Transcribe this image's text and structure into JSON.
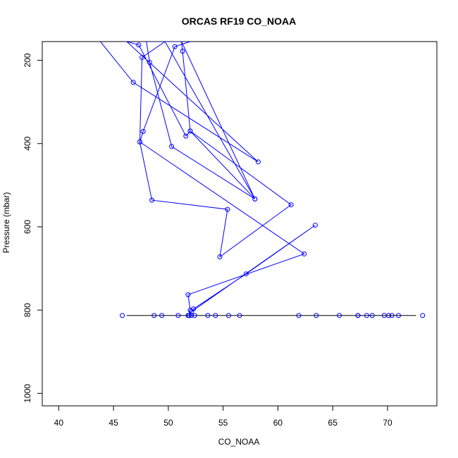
{
  "chart_data": {
    "type": "line",
    "title": "ORCAS RF19 CO_NOAA",
    "xlabel": "CO_NOAA",
    "ylabel": "Pressure (mbar)",
    "xlim": [
      38.5,
      74.5
    ],
    "ylim": [
      1030,
      155
    ],
    "y_reversed": true,
    "xticks": [
      40,
      45,
      50,
      55,
      60,
      65,
      70
    ],
    "yticks": [
      200,
      400,
      600,
      800,
      1000
    ],
    "line_color": "#0000ff",
    "reference_line_color": "#000000",
    "reference_line": {
      "y": 813,
      "x": [
        46.2,
        72.6
      ]
    },
    "series": [
      {
        "points": [
          [
            43.8,
            155
          ],
          [
            46.8,
            253
          ],
          [
            58.2,
            444
          ],
          [
            46.2,
            155
          ],
          [
            47.3,
            163
          ],
          [
            51.6,
            382
          ],
          [
            52.0,
            370
          ],
          [
            57.9,
            533
          ],
          [
            51.2,
            155
          ],
          [
            51.3,
            178
          ],
          [
            52.0,
            370
          ],
          [
            61.2,
            547
          ],
          [
            54.7,
            672
          ],
          [
            55.4,
            558
          ],
          [
            48.5,
            536
          ],
          [
            47.4,
            396
          ],
          [
            47.7,
            371
          ],
          [
            50.6,
            167
          ],
          [
            52.0,
            155
          ],
          [
            48.0,
            155
          ],
          [
            48.3,
            205
          ],
          [
            50.3,
            407
          ],
          [
            57.9,
            533
          ],
          [
            49.7,
            155
          ],
          [
            47.6,
            193
          ],
          [
            47.4,
            396
          ],
          [
            62.4,
            665
          ],
          [
            51.8,
            763
          ],
          [
            52.0,
            800
          ],
          [
            51.9,
            813
          ],
          [
            52.1,
            804
          ],
          [
            63.4,
            596
          ],
          [
            57.1,
            713
          ],
          [
            52.3,
            797
          ],
          [
            51.9,
            813
          ]
        ],
        "values": [
          [
            45.8,
            813
          ],
          [
            48.7,
            813
          ],
          [
            49.4,
            813
          ],
          [
            50.9,
            813
          ],
          [
            51.8,
            813
          ],
          [
            52.1,
            813
          ],
          [
            52.4,
            813
          ],
          [
            53.6,
            813
          ],
          [
            54.3,
            813
          ],
          [
            55.5,
            813
          ],
          [
            56.5,
            813
          ],
          [
            61.9,
            813
          ],
          [
            63.5,
            813
          ],
          [
            65.6,
            813
          ],
          [
            67.3,
            813
          ],
          [
            67.3,
            813
          ],
          [
            68.1,
            813
          ],
          [
            68.6,
            813
          ],
          [
            69.7,
            813
          ],
          [
            70.1,
            813
          ],
          [
            70.4,
            813
          ],
          [
            71.0,
            813
          ],
          [
            73.2,
            813
          ]
        ]
      }
    ]
  }
}
